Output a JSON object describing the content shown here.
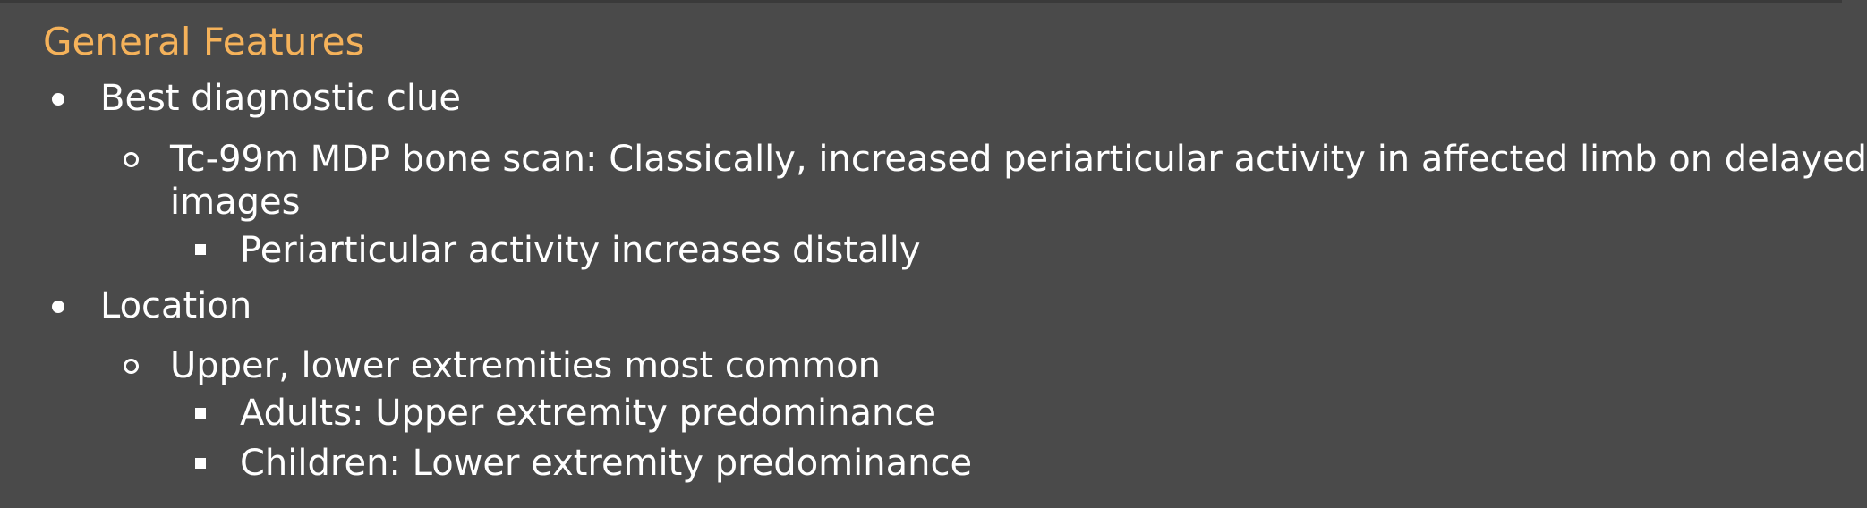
{
  "title": "General Features",
  "items": [
    {
      "label": "Best diagnostic clue",
      "children": [
        {
          "label": "Tc-99m MDP bone scan: Classically, increased periarticular activity in affected limb on delayed images",
          "children": [
            {
              "label": "Periarticular activity increases distally"
            }
          ]
        }
      ]
    },
    {
      "label": "Location",
      "children": [
        {
          "label": "Upper, lower extremities most common",
          "children": [
            {
              "label": "Adults: Upper extremity predominance"
            },
            {
              "label": "Children: Lower extremity predominance"
            }
          ]
        }
      ]
    }
  ],
  "colors": {
    "background": "#4a4a4a",
    "title": "#f5b25a",
    "text": "#ffffff"
  }
}
